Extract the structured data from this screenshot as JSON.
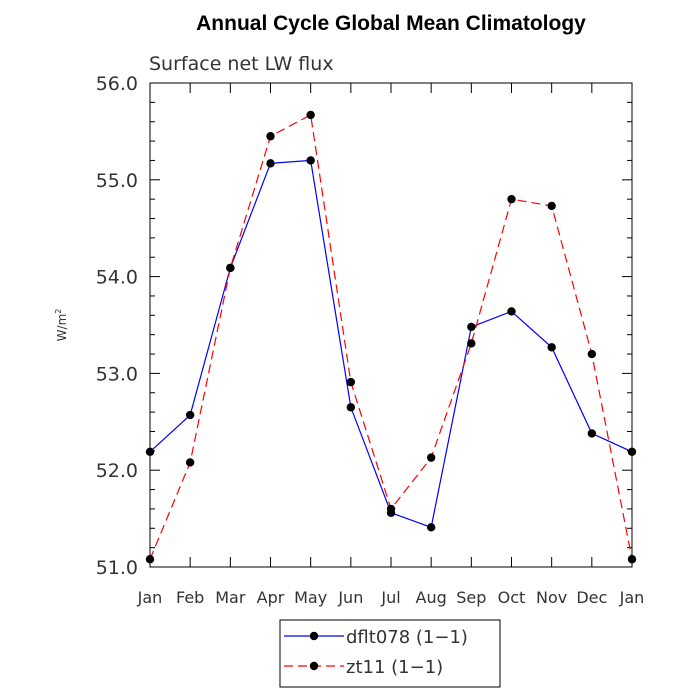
{
  "chart_data": {
    "type": "line",
    "title": "Annual Cycle Global Mean Climatology",
    "subtitle": "Surface net LW flux",
    "ylabel": "W/m",
    "ylabel_sup": "2",
    "xlabel": "",
    "categories": [
      "Jan",
      "Feb",
      "Mar",
      "Apr",
      "May",
      "Jun",
      "Jul",
      "Aug",
      "Sep",
      "Oct",
      "Nov",
      "Dec",
      "Jan"
    ],
    "ylim": [
      51.0,
      56.0
    ],
    "yticks": [
      "51.0",
      "52.0",
      "53.0",
      "54.0",
      "55.0",
      "56.0"
    ],
    "grid": false,
    "legend_position": "bottom",
    "series": [
      {
        "name": "dflt078 (1−1)",
        "color": "#0000ff",
        "dash": "solid",
        "values": [
          52.19,
          52.57,
          54.09,
          55.17,
          55.2,
          52.65,
          51.56,
          51.41,
          53.48,
          53.64,
          53.27,
          52.38,
          52.19
        ]
      },
      {
        "name": "zt11 (1−1)",
        "color": "#ff0000",
        "dash": "dashed",
        "values": [
          51.08,
          52.08,
          54.09,
          55.45,
          55.67,
          52.91,
          51.6,
          52.13,
          53.31,
          54.8,
          54.73,
          53.2,
          51.08
        ]
      }
    ]
  }
}
